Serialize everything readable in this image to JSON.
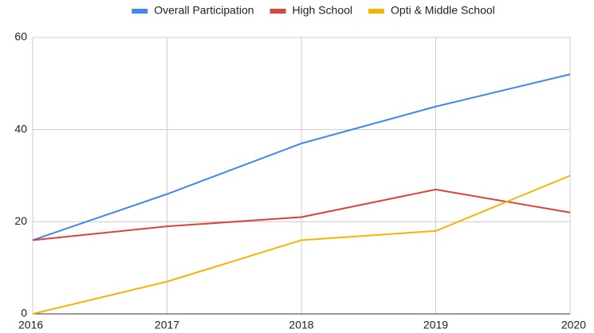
{
  "chart_data": {
    "type": "line",
    "x": [
      2016,
      2017,
      2018,
      2019,
      2020
    ],
    "series": [
      {
        "name": "Overall Participation",
        "color": "#4285f4",
        "values": [
          16,
          26,
          37,
          45,
          52
        ]
      },
      {
        "name": "High School",
        "color": "#db4437",
        "values": [
          16,
          19,
          21,
          27,
          22
        ]
      },
      {
        "name": "Opti & Middle School",
        "color": "#f4b400",
        "values": [
          0,
          7,
          16,
          18,
          30
        ]
      }
    ],
    "xlim": [
      2016,
      2020
    ],
    "xticks": [
      2016,
      2017,
      2018,
      2019,
      2020
    ],
    "ylim": [
      0,
      60
    ],
    "yticks": [
      0,
      20,
      40,
      60
    ],
    "grid": true,
    "legend": "top"
  }
}
